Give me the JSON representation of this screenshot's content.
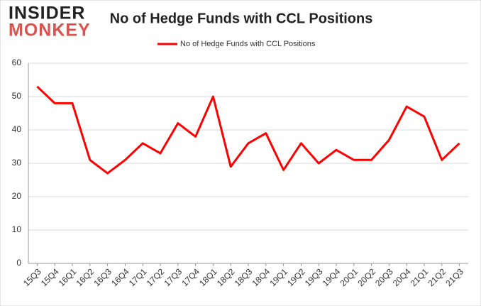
{
  "logo": {
    "line1": "INSIDER",
    "line2": "MONKEY"
  },
  "chart_data": {
    "type": "line",
    "title": "No of Hedge Funds with CCL Positions",
    "categories": [
      "15Q3",
      "15Q4",
      "16Q1",
      "16Q2",
      "16Q3",
      "16Q4",
      "17Q1",
      "17Q2",
      "17Q3",
      "17Q4",
      "18Q1",
      "18Q2",
      "18Q3",
      "18Q4",
      "19Q1",
      "19Q2",
      "19Q3",
      "19Q4",
      "20Q1",
      "20Q2",
      "20Q3",
      "20Q4",
      "21Q1",
      "21Q2",
      "21Q3"
    ],
    "series": [
      {
        "name": "No of Hedge Funds with CCL Positions",
        "color": "#ff0000",
        "values": [
          53,
          48,
          48,
          31,
          27,
          31,
          36,
          33,
          42,
          38,
          50,
          29,
          36,
          39,
          28,
          36,
          30,
          34,
          31,
          31,
          37,
          47,
          44,
          31,
          36
        ]
      }
    ],
    "ylim": [
      0,
      60
    ],
    "yticks": [
      0,
      10,
      20,
      30,
      40,
      50,
      60
    ],
    "grid": true,
    "legend": "top"
  }
}
